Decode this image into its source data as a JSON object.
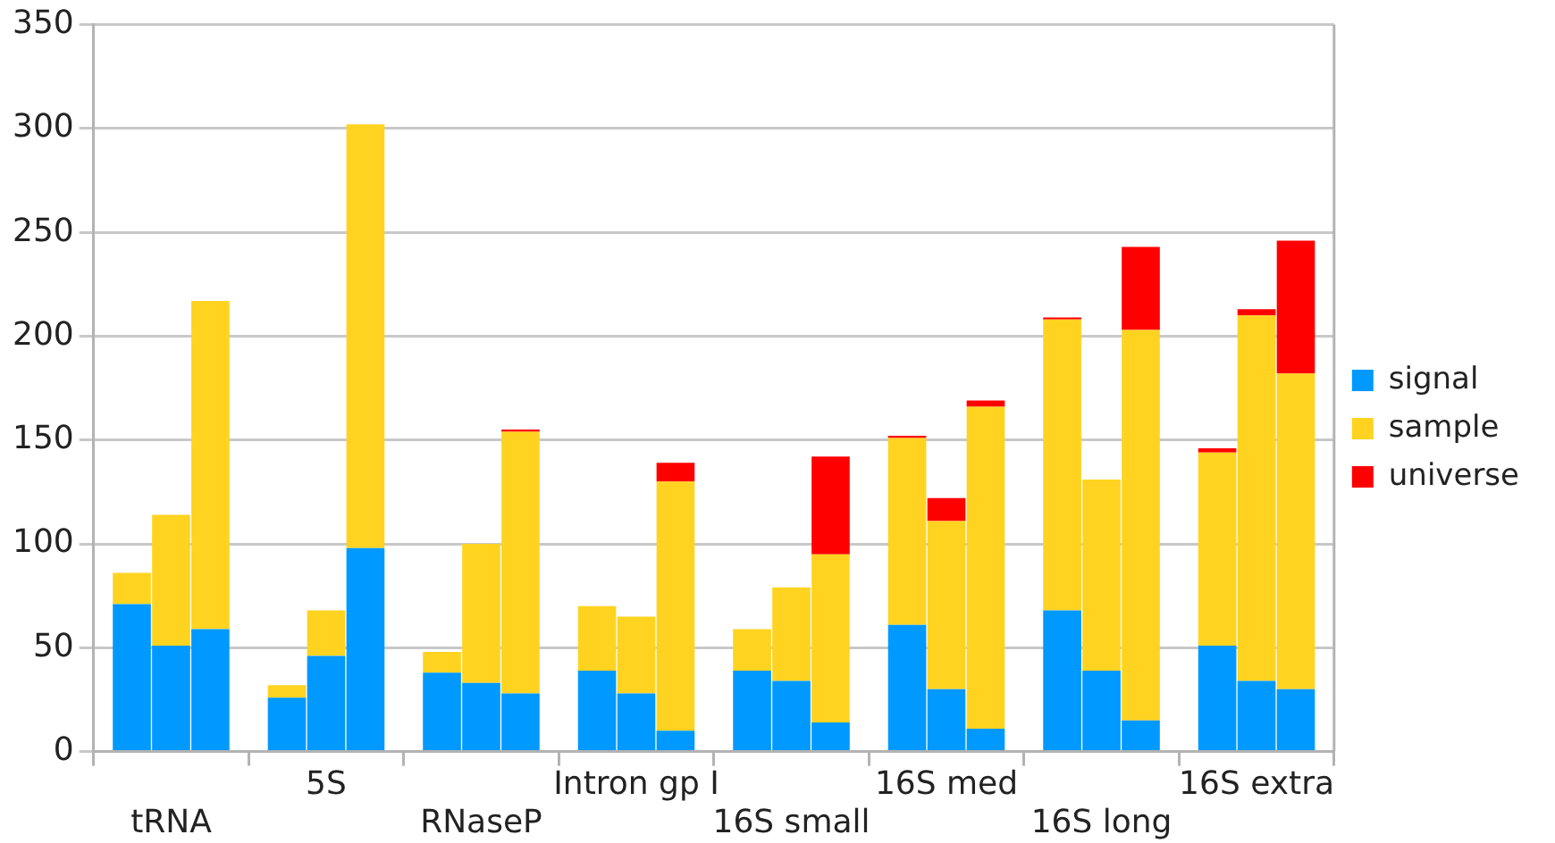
{
  "chart_data": {
    "type": "bar",
    "stacked": true,
    "grid": "y",
    "legend": "right",
    "categories": [
      null,
      "tRNA",
      null,
      null,
      "5S",
      null,
      null,
      "RNaseP",
      null,
      null,
      "Intron gp I",
      null,
      null,
      "16S small",
      null,
      null,
      "16S med",
      null,
      null,
      "16S long",
      null,
      null,
      "16S extra",
      null
    ],
    "series": [
      {
        "name": "signal",
        "color": "#0099ff",
        "values": [
          71,
          51,
          59,
          26,
          46,
          98,
          38,
          33,
          28,
          39,
          28,
          10,
          39,
          34,
          14,
          61,
          30,
          11,
          68,
          39,
          15,
          51,
          34,
          30
        ]
      },
      {
        "name": "sample",
        "color": "#ffd320",
        "values": [
          15,
          63,
          158,
          6,
          22,
          204,
          10,
          67,
          126,
          31,
          37,
          120,
          20,
          45,
          81,
          90,
          81,
          155,
          140,
          92,
          188,
          93,
          176,
          152
        ]
      },
      {
        "name": "universe",
        "color": "#ff0000",
        "values": [
          0,
          0,
          0,
          0,
          0,
          0,
          0,
          0,
          1,
          0,
          0,
          9,
          0,
          0,
          47,
          1,
          11,
          3,
          1,
          0,
          40,
          2,
          3,
          64
        ]
      }
    ],
    "ylim": [
      0,
      350
    ],
    "yticks": [
      0,
      50,
      100,
      150,
      200,
      250,
      300,
      350
    ]
  }
}
